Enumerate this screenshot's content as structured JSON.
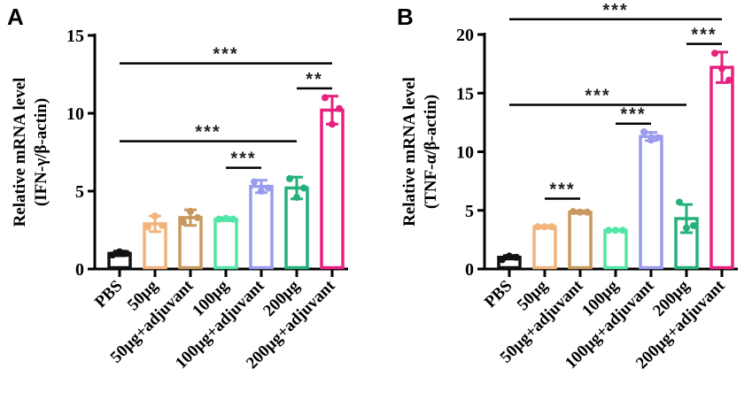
{
  "chart_data": [
    {
      "type": "bar",
      "panel_label": "A",
      "ylabel_line1": "Relative mRNA level",
      "ylabel_line2": "(IFN-γ/β-actin)",
      "ylim": [
        0,
        15
      ],
      "yticks": [
        0,
        5,
        10,
        15
      ],
      "categories": [
        "PBS",
        "50μg",
        "50μg+adjuvant",
        "100μg",
        "100μg+adjuvant",
        "200μg",
        "200μg+adjuvant"
      ],
      "colors": [
        "#111111",
        "#f2b47c",
        "#c9985e",
        "#52e6a6",
        "#9a9cee",
        "#25b07a",
        "#e8207e"
      ],
      "values": [
        1.0,
        2.9,
        3.3,
        3.2,
        5.3,
        5.2,
        10.2
      ],
      "sd": [
        0.15,
        0.5,
        0.5,
        0.1,
        0.4,
        0.7,
        0.9
      ],
      "points": [
        [
          0.9,
          1.1,
          1.0
        ],
        [
          2.7,
          3.4,
          2.8
        ],
        [
          3.0,
          3.7,
          3.3
        ],
        [
          3.2,
          3.25,
          3.2
        ],
        [
          5.6,
          5.0,
          5.2
        ],
        [
          5.8,
          4.6,
          5.2
        ],
        [
          11.0,
          9.3,
          10.3
        ]
      ],
      "significance": [
        {
          "from": 0,
          "to": 6,
          "y": 13.2,
          "label": "***"
        },
        {
          "from": 5,
          "to": 6,
          "y": 11.6,
          "label": "**"
        },
        {
          "from": 0,
          "to": 5,
          "y": 8.2,
          "label": "***"
        },
        {
          "from": 3,
          "to": 4,
          "y": 6.5,
          "label": "***"
        }
      ]
    },
    {
      "type": "bar",
      "panel_label": "B",
      "ylabel_line1": "Relative mRNA level",
      "ylabel_line2": "(TNF-α/β-actin)",
      "ylim": [
        0,
        20
      ],
      "yticks": [
        0,
        5,
        10,
        15,
        20
      ],
      "categories": [
        "PBS",
        "50μg",
        "50μg+adjuvant",
        "100μg",
        "100μg+adjuvant",
        "200μg",
        "200μg+adjuvant"
      ],
      "colors": [
        "#111111",
        "#f2b47c",
        "#c9985e",
        "#52e6a6",
        "#9a9cee",
        "#25b07a",
        "#e8207e"
      ],
      "values": [
        1.0,
        3.6,
        4.85,
        3.3,
        11.3,
        4.3,
        17.2
      ],
      "sd": [
        0.15,
        0.1,
        0.1,
        0.05,
        0.35,
        1.2,
        1.3
      ],
      "points": [
        [
          0.8,
          1.1,
          1.0
        ],
        [
          3.6,
          3.6,
          3.6
        ],
        [
          4.9,
          4.85,
          4.85
        ],
        [
          3.3,
          3.3,
          3.3
        ],
        [
          11.7,
          11.0,
          11.2
        ],
        [
          5.7,
          3.5,
          3.7
        ],
        [
          18.4,
          17.1,
          16.1
        ]
      ],
      "significance": [
        {
          "from": 0,
          "to": 6,
          "y": 21.3,
          "label": "***"
        },
        {
          "from": 5,
          "to": 6,
          "y": 19.2,
          "label": "***"
        },
        {
          "from": 0,
          "to": 5,
          "y": 14.0,
          "label": "***"
        },
        {
          "from": 3,
          "to": 4,
          "y": 12.4,
          "label": "***"
        },
        {
          "from": 1,
          "to": 2,
          "y": 6.0,
          "label": "***"
        }
      ]
    }
  ]
}
